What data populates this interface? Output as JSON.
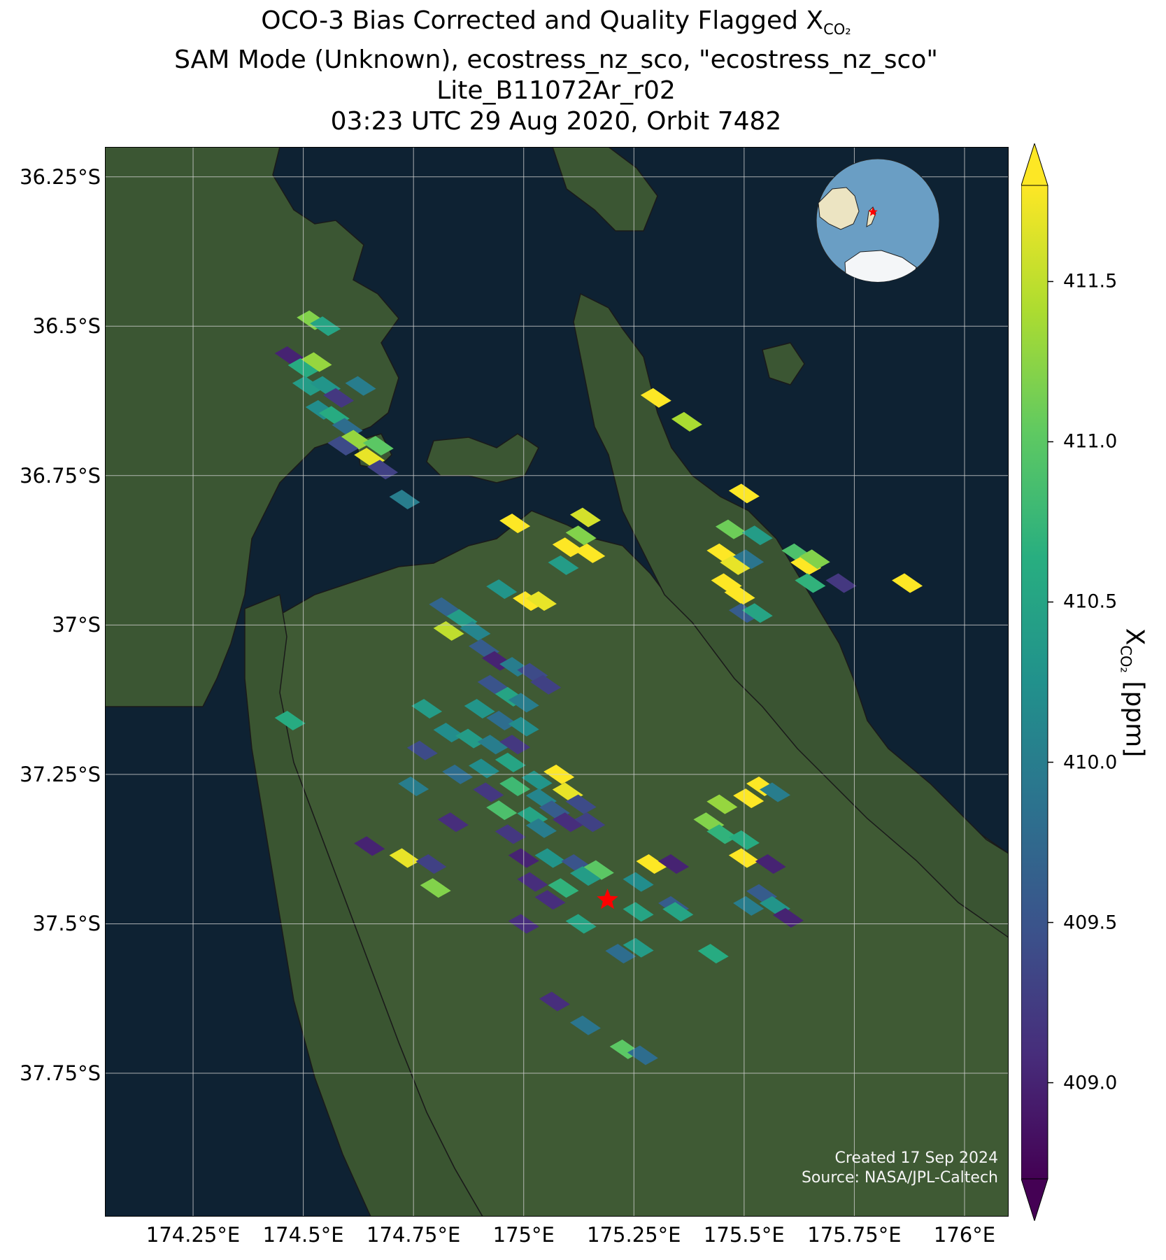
{
  "title": {
    "line1_prefix": "OCO-3 Bias Corrected and Quality Flagged X",
    "line1_sub": "CO₂",
    "line2": "SAM Mode (Unknown), ecostress_nz_sco, \"ecostress_nz_sco\"",
    "line3": "Lite_B11072Ar_r02",
    "line4": "03:23 UTC 29 Aug 2020, Orbit 7482"
  },
  "map": {
    "lon_range": [
      174.05,
      176.1
    ],
    "lat_range": [
      -37.99,
      -36.2
    ],
    "lat_ticks": [
      {
        "value": -36.25,
        "label": "36.25°S"
      },
      {
        "value": -36.5,
        "label": "36.5°S"
      },
      {
        "value": -36.75,
        "label": "36.75°S"
      },
      {
        "value": -37.0,
        "label": "37°S"
      },
      {
        "value": -37.25,
        "label": "37.25°S"
      },
      {
        "value": -37.5,
        "label": "37.5°S"
      },
      {
        "value": -37.75,
        "label": "37.75°S"
      }
    ],
    "lon_ticks": [
      {
        "value": 174.25,
        "label": "174.25°E"
      },
      {
        "value": 174.5,
        "label": "174.5°E"
      },
      {
        "value": 174.75,
        "label": "174.75°E"
      },
      {
        "value": 175.0,
        "label": "175°E"
      },
      {
        "value": 175.25,
        "label": "175.25°E"
      },
      {
        "value": 175.5,
        "label": "175.5°E"
      },
      {
        "value": 175.75,
        "label": "175.75°E"
      },
      {
        "value": 176.0,
        "label": "176°E"
      }
    ],
    "grid": true,
    "target_star": {
      "lon": 175.19,
      "lat": -37.46,
      "color": "#ff0000"
    },
    "colors": {
      "ocean": "#0e2233",
      "land": "#3b5633",
      "gridline": "#d0d0d0"
    },
    "inset_globe": {
      "ocean_color": "#6a9ec4",
      "land_color": "#ece4c2",
      "marker_color": "#ff0000",
      "placement": "top-right"
    }
  },
  "soundings": [
    {
      "lon": 174.52,
      "lat": -36.49,
      "xco2": 411.2
    },
    {
      "lon": 174.55,
      "lat": -36.5,
      "xco2": 410.5
    },
    {
      "lon": 174.47,
      "lat": -36.55,
      "xco2": 409.0
    },
    {
      "lon": 174.5,
      "lat": -36.57,
      "xco2": 410.6
    },
    {
      "lon": 174.53,
      "lat": -36.56,
      "xco2": 411.3
    },
    {
      "lon": 174.51,
      "lat": -36.6,
      "xco2": 410.4
    },
    {
      "lon": 174.55,
      "lat": -36.6,
      "xco2": 410.3
    },
    {
      "lon": 174.58,
      "lat": -36.62,
      "xco2": 409.2
    },
    {
      "lon": 174.54,
      "lat": -36.64,
      "xco2": 410.2
    },
    {
      "lon": 174.57,
      "lat": -36.65,
      "xco2": 410.6
    },
    {
      "lon": 174.6,
      "lat": -36.67,
      "xco2": 409.8
    },
    {
      "lon": 174.63,
      "lat": -36.6,
      "xco2": 410.0
    },
    {
      "lon": 174.62,
      "lat": -36.69,
      "xco2": 411.3
    },
    {
      "lon": 174.59,
      "lat": -36.7,
      "xco2": 409.4
    },
    {
      "lon": 174.65,
      "lat": -36.72,
      "xco2": 411.7
    },
    {
      "lon": 174.68,
      "lat": -36.74,
      "xco2": 409.3
    },
    {
      "lon": 174.67,
      "lat": -36.7,
      "xco2": 411.0
    },
    {
      "lon": 174.73,
      "lat": -36.79,
      "xco2": 410.0
    },
    {
      "lon": 174.98,
      "lat": -36.83,
      "xco2": 411.8
    },
    {
      "lon": 175.1,
      "lat": -36.87,
      "xco2": 411.8
    },
    {
      "lon": 175.13,
      "lat": -36.85,
      "xco2": 411.2
    },
    {
      "lon": 175.15,
      "lat": -36.88,
      "xco2": 411.8
    },
    {
      "lon": 175.09,
      "lat": -36.9,
      "xco2": 410.4
    },
    {
      "lon": 175.14,
      "lat": -36.82,
      "xco2": 411.6
    },
    {
      "lon": 174.95,
      "lat": -36.94,
      "xco2": 410.3
    },
    {
      "lon": 175.01,
      "lat": -36.96,
      "xco2": 411.8
    },
    {
      "lon": 175.04,
      "lat": -36.96,
      "xco2": 411.7
    },
    {
      "lon": 174.82,
      "lat": -36.97,
      "xco2": 409.7
    },
    {
      "lon": 175.3,
      "lat": -36.62,
      "xco2": 411.8
    },
    {
      "lon": 175.37,
      "lat": -36.66,
      "xco2": 411.4
    },
    {
      "lon": 175.5,
      "lat": -36.78,
      "xco2": 411.8
    },
    {
      "lon": 175.47,
      "lat": -36.84,
      "xco2": 411.1
    },
    {
      "lon": 175.53,
      "lat": -36.85,
      "xco2": 410.4
    },
    {
      "lon": 175.45,
      "lat": -36.88,
      "xco2": 411.8
    },
    {
      "lon": 175.48,
      "lat": -36.9,
      "xco2": 411.7
    },
    {
      "lon": 175.51,
      "lat": -36.89,
      "xco2": 409.9
    },
    {
      "lon": 175.46,
      "lat": -36.93,
      "xco2": 411.8
    },
    {
      "lon": 175.49,
      "lat": -36.95,
      "xco2": 411.8
    },
    {
      "lon": 175.5,
      "lat": -36.98,
      "xco2": 409.6
    },
    {
      "lon": 175.53,
      "lat": -36.98,
      "xco2": 410.5
    },
    {
      "lon": 175.62,
      "lat": -36.88,
      "xco2": 410.9
    },
    {
      "lon": 175.64,
      "lat": -36.9,
      "xco2": 411.8
    },
    {
      "lon": 175.65,
      "lat": -36.93,
      "xco2": 410.7
    },
    {
      "lon": 175.66,
      "lat": -36.89,
      "xco2": 411.2
    },
    {
      "lon": 175.72,
      "lat": -36.93,
      "xco2": 409.2
    },
    {
      "lon": 175.87,
      "lat": -36.93,
      "xco2": 411.8
    },
    {
      "lon": 174.86,
      "lat": -36.99,
      "xco2": 410.4
    },
    {
      "lon": 174.83,
      "lat": -37.01,
      "xco2": 411.5
    },
    {
      "lon": 174.89,
      "lat": -37.01,
      "xco2": 410.1
    },
    {
      "lon": 174.91,
      "lat": -37.04,
      "xco2": 409.6
    },
    {
      "lon": 174.94,
      "lat": -37.06,
      "xco2": 409.0
    },
    {
      "lon": 174.98,
      "lat": -37.07,
      "xco2": 410.0
    },
    {
      "lon": 175.02,
      "lat": -37.08,
      "xco2": 409.4
    },
    {
      "lon": 175.05,
      "lat": -37.1,
      "xco2": 409.3
    },
    {
      "lon": 174.93,
      "lat": -37.1,
      "xco2": 409.5
    },
    {
      "lon": 174.97,
      "lat": -37.12,
      "xco2": 410.5
    },
    {
      "lon": 175.0,
      "lat": -37.13,
      "xco2": 410.0
    },
    {
      "lon": 174.9,
      "lat": -37.14,
      "xco2": 410.3
    },
    {
      "lon": 174.95,
      "lat": -37.16,
      "xco2": 409.8
    },
    {
      "lon": 175.0,
      "lat": -37.17,
      "xco2": 410.2
    },
    {
      "lon": 174.78,
      "lat": -37.14,
      "xco2": 410.4
    },
    {
      "lon": 174.83,
      "lat": -37.18,
      "xco2": 410.2
    },
    {
      "lon": 174.88,
      "lat": -37.19,
      "xco2": 410.4
    },
    {
      "lon": 174.93,
      "lat": -37.2,
      "xco2": 410.0
    },
    {
      "lon": 174.98,
      "lat": -37.2,
      "xco2": 409.2
    },
    {
      "lon": 174.47,
      "lat": -37.16,
      "xco2": 410.6
    },
    {
      "lon": 174.77,
      "lat": -37.21,
      "xco2": 409.4
    },
    {
      "lon": 174.85,
      "lat": -37.25,
      "xco2": 409.8
    },
    {
      "lon": 174.91,
      "lat": -37.24,
      "xco2": 410.2
    },
    {
      "lon": 174.97,
      "lat": -37.23,
      "xco2": 410.5
    },
    {
      "lon": 175.03,
      "lat": -37.26,
      "xco2": 410.3
    },
    {
      "lon": 175.08,
      "lat": -37.25,
      "xco2": 411.8
    },
    {
      "lon": 174.75,
      "lat": -37.27,
      "xco2": 410.0
    },
    {
      "lon": 174.92,
      "lat": -37.28,
      "xco2": 409.2
    },
    {
      "lon": 174.98,
      "lat": -37.27,
      "xco2": 410.8
    },
    {
      "lon": 175.04,
      "lat": -37.29,
      "xco2": 410.1
    },
    {
      "lon": 175.1,
      "lat": -37.28,
      "xco2": 411.7
    },
    {
      "lon": 174.95,
      "lat": -37.31,
      "xco2": 410.9
    },
    {
      "lon": 175.02,
      "lat": -37.32,
      "xco2": 410.5
    },
    {
      "lon": 175.07,
      "lat": -37.31,
      "xco2": 409.6
    },
    {
      "lon": 175.13,
      "lat": -37.3,
      "xco2": 409.4
    },
    {
      "lon": 174.84,
      "lat": -37.33,
      "xco2": 409.1
    },
    {
      "lon": 174.97,
      "lat": -37.35,
      "xco2": 409.2
    },
    {
      "lon": 175.04,
      "lat": -37.34,
      "xco2": 410.0
    },
    {
      "lon": 175.1,
      "lat": -37.33,
      "xco2": 409.1
    },
    {
      "lon": 175.15,
      "lat": -37.33,
      "xco2": 409.3
    },
    {
      "lon": 174.65,
      "lat": -37.37,
      "xco2": 409.0
    },
    {
      "lon": 174.73,
      "lat": -37.39,
      "xco2": 411.7
    },
    {
      "lon": 174.79,
      "lat": -37.4,
      "xco2": 409.3
    },
    {
      "lon": 175.0,
      "lat": -37.39,
      "xco2": 409.0
    },
    {
      "lon": 175.06,
      "lat": -37.39,
      "xco2": 410.3
    },
    {
      "lon": 175.12,
      "lat": -37.4,
      "xco2": 409.5
    },
    {
      "lon": 175.17,
      "lat": -37.41,
      "xco2": 411.0
    },
    {
      "lon": 175.29,
      "lat": -37.4,
      "xco2": 411.8
    },
    {
      "lon": 175.34,
      "lat": -37.4,
      "xco2": 409.0
    },
    {
      "lon": 175.42,
      "lat": -37.33,
      "xco2": 411.2
    },
    {
      "lon": 175.45,
      "lat": -37.35,
      "xco2": 410.7
    },
    {
      "lon": 175.5,
      "lat": -37.36,
      "xco2": 410.6
    },
    {
      "lon": 175.5,
      "lat": -37.39,
      "xco2": 411.8
    },
    {
      "lon": 175.56,
      "lat": -37.4,
      "xco2": 409.0
    },
    {
      "lon": 175.45,
      "lat": -37.3,
      "xco2": 411.3
    },
    {
      "lon": 175.51,
      "lat": -37.29,
      "xco2": 411.8
    },
    {
      "lon": 175.54,
      "lat": -37.27,
      "xco2": 411.8
    },
    {
      "lon": 175.57,
      "lat": -37.28,
      "xco2": 410.0
    },
    {
      "lon": 174.8,
      "lat": -37.44,
      "xco2": 411.2
    },
    {
      "lon": 175.02,
      "lat": -37.43,
      "xco2": 409.1
    },
    {
      "lon": 175.09,
      "lat": -37.44,
      "xco2": 410.7
    },
    {
      "lon": 175.14,
      "lat": -37.42,
      "xco2": 410.4
    },
    {
      "lon": 175.06,
      "lat": -37.46,
      "xco2": 409.1
    },
    {
      "lon": 175.26,
      "lat": -37.43,
      "xco2": 410.2
    },
    {
      "lon": 175.26,
      "lat": -37.48,
      "xco2": 410.5
    },
    {
      "lon": 175.34,
      "lat": -37.47,
      "xco2": 409.6
    },
    {
      "lon": 175.35,
      "lat": -37.48,
      "xco2": 410.5
    },
    {
      "lon": 175.54,
      "lat": -37.45,
      "xco2": 409.6
    },
    {
      "lon": 175.57,
      "lat": -37.47,
      "xco2": 410.3
    },
    {
      "lon": 175.51,
      "lat": -37.47,
      "xco2": 410.0
    },
    {
      "lon": 175.6,
      "lat": -37.49,
      "xco2": 409.0
    },
    {
      "lon": 175.0,
      "lat": -37.5,
      "xco2": 409.1
    },
    {
      "lon": 175.13,
      "lat": -37.5,
      "xco2": 410.5
    },
    {
      "lon": 175.22,
      "lat": -37.55,
      "xco2": 409.8
    },
    {
      "lon": 175.26,
      "lat": -37.54,
      "xco2": 410.4
    },
    {
      "lon": 175.43,
      "lat": -37.55,
      "xco2": 410.6
    },
    {
      "lon": 175.07,
      "lat": -37.63,
      "xco2": 409.1
    },
    {
      "lon": 175.14,
      "lat": -37.67,
      "xco2": 409.9
    },
    {
      "lon": 175.23,
      "lat": -37.71,
      "xco2": 411.0
    },
    {
      "lon": 175.27,
      "lat": -37.72,
      "xco2": 409.8
    }
  ],
  "colorbar": {
    "vmin": 408.7,
    "vmax": 411.8,
    "extend": "both",
    "colormap": "viridis",
    "ticks": [
      {
        "value": 409.0,
        "label": "409.0"
      },
      {
        "value": 409.5,
        "label": "409.5"
      },
      {
        "value": 410.0,
        "label": "410.0"
      },
      {
        "value": 410.5,
        "label": "410.5"
      },
      {
        "value": 411.0,
        "label": "411.0"
      },
      {
        "value": 411.5,
        "label": "411.5"
      }
    ],
    "label_prefix": "X",
    "label_sub": "CO₂",
    "label_suffix": " [ppm]"
  },
  "credit": {
    "line1": "Created 17 Sep 2024",
    "line2": "Source: NASA/JPL-Caltech"
  }
}
